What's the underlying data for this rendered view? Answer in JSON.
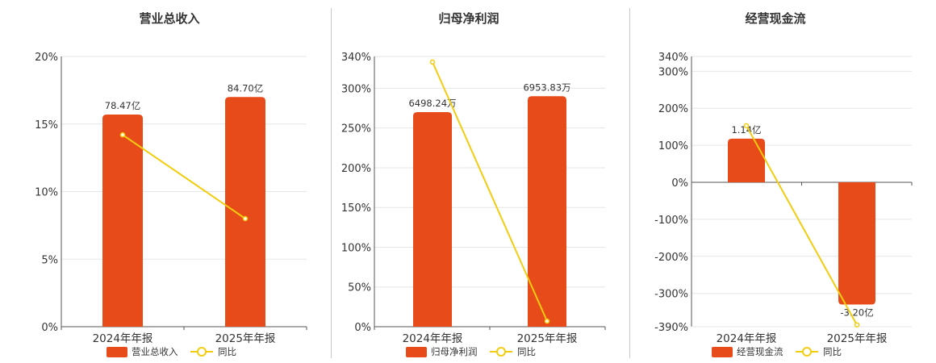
{
  "colors": {
    "bar": "#e84b1a",
    "line": "#f2cd0f",
    "axis": "#555555",
    "grid": "#e6e6e6",
    "divider": "#c8c8c8"
  },
  "chart_data": [
    {
      "type": "bar",
      "title": "营业总收入",
      "categories": [
        "2024年年报",
        "2025年年报"
      ],
      "series": [
        {
          "name": "营业总收入",
          "type": "bar",
          "values": [
            15.7,
            17.0
          ],
          "labels": [
            "78.47亿",
            "84.70亿"
          ]
        },
        {
          "name": "同比",
          "type": "line",
          "values": [
            14.2,
            8.0
          ]
        }
      ],
      "ylim": [
        0,
        20
      ],
      "yticks": [
        0,
        5,
        10,
        15,
        20
      ],
      "ytick_labels": [
        "0%",
        "5%",
        "10%",
        "15%",
        "20%"
      ],
      "grid": true,
      "legend": "bottom"
    },
    {
      "type": "bar",
      "title": "归母净利润",
      "categories": [
        "2024年年报",
        "2025年年报"
      ],
      "series": [
        {
          "name": "归母净利润",
          "type": "bar",
          "values": [
            270,
            290
          ],
          "labels": [
            "6498.24万",
            "6953.83万"
          ]
        },
        {
          "name": "同比",
          "type": "line",
          "values": [
            333,
            7
          ]
        }
      ],
      "ylim": [
        0,
        340
      ],
      "yticks": [
        0,
        50,
        100,
        150,
        200,
        250,
        300,
        340
      ],
      "ytick_labels": [
        "0%",
        "50%",
        "100%",
        "150%",
        "200%",
        "250%",
        "300%",
        "340%"
      ],
      "grid": true,
      "legend": "bottom"
    },
    {
      "type": "bar",
      "title": "经营现金流",
      "categories": [
        "2024年年报",
        "2025年年报"
      ],
      "series": [
        {
          "name": "经营现金流",
          "type": "bar",
          "values": [
            118,
            -330
          ],
          "labels": [
            "1.14亿",
            "-3.20亿"
          ]
        },
        {
          "name": "同比",
          "type": "line",
          "values": [
            153,
            -385
          ]
        }
      ],
      "ylim": [
        -390,
        340
      ],
      "yticks": [
        -390,
        -300,
        -200,
        -100,
        0,
        100,
        200,
        300,
        340
      ],
      "ytick_labels": [
        "-390%",
        "-300%",
        "-200%",
        "-100%",
        "0%",
        "100%",
        "200%",
        "300%",
        "340%"
      ],
      "grid": true,
      "legend": "bottom"
    }
  ]
}
